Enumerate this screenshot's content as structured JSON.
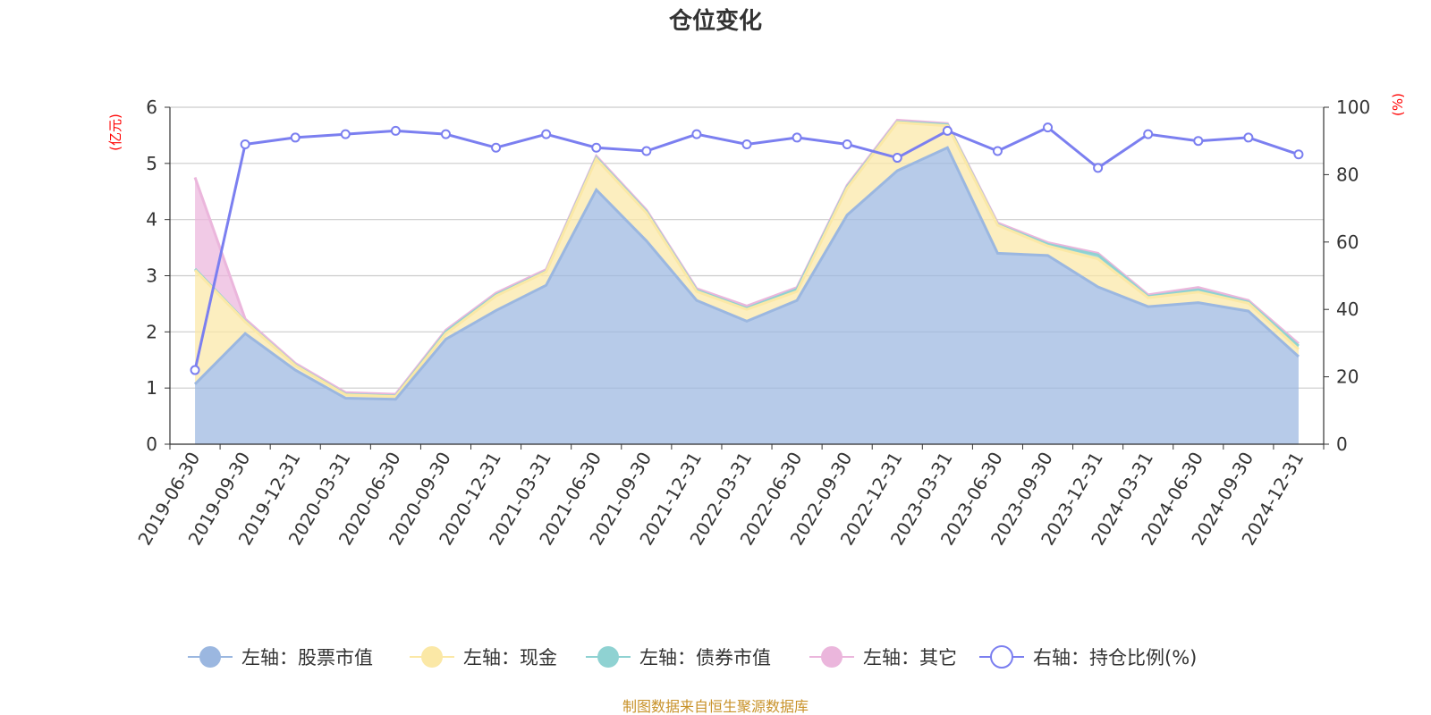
{
  "chart_data": {
    "type": "area",
    "title": "仓位变化",
    "left_axis": {
      "label": "(亿元)",
      "ylim": [
        0,
        6
      ],
      "ticks": [
        "0",
        "1",
        "2",
        "3",
        "4",
        "5",
        "6"
      ]
    },
    "right_axis": {
      "label": "(%)",
      "ylim": [
        0,
        100
      ],
      "ticks": [
        "0",
        "20",
        "40",
        "60",
        "80",
        "100"
      ]
    },
    "categories": [
      "2019-06-30",
      "2019-09-30",
      "2019-12-31",
      "2020-03-31",
      "2020-06-30",
      "2020-09-30",
      "2020-12-31",
      "2021-03-31",
      "2021-06-30",
      "2021-09-30",
      "2021-12-31",
      "2022-03-31",
      "2022-06-30",
      "2022-09-30",
      "2022-12-31",
      "2023-03-31",
      "2023-06-30",
      "2023-09-30",
      "2023-12-31",
      "2024-03-31",
      "2024-06-30",
      "2024-09-30",
      "2024-12-31"
    ],
    "series": [
      {
        "name": "左轴：股票市值",
        "axis": "left",
        "color": "#9bb7e0",
        "values": [
          1.07,
          1.97,
          1.32,
          0.82,
          0.8,
          1.87,
          2.38,
          2.83,
          4.53,
          3.62,
          2.56,
          2.19,
          2.56,
          4.08,
          4.87,
          5.28,
          3.4,
          3.36,
          2.8,
          2.45,
          2.52,
          2.37,
          1.56
        ]
      },
      {
        "name": "左轴：现金",
        "axis": "left",
        "color": "#fbe8a6",
        "values": [
          2.03,
          0.21,
          0.08,
          0.06,
          0.05,
          0.1,
          0.26,
          0.24,
          0.55,
          0.5,
          0.16,
          0.21,
          0.16,
          0.48,
          0.86,
          0.39,
          0.5,
          0.17,
          0.5,
          0.16,
          0.19,
          0.14,
          0.13
        ]
      },
      {
        "name": "左轴：债券市值",
        "axis": "left",
        "color": "#8fd2d2",
        "values": [
          0.02,
          0.01,
          0.01,
          0.01,
          0.01,
          0.03,
          0.02,
          0.01,
          0.02,
          0.02,
          0.02,
          0.02,
          0.04,
          0.02,
          0.01,
          0.02,
          0.01,
          0.03,
          0.07,
          0.02,
          0.04,
          0.02,
          0.06
        ]
      },
      {
        "name": "左轴：其它",
        "axis": "left",
        "color": "#ebb6dc",
        "values": [
          1.63,
          0.04,
          0.03,
          0.03,
          0.03,
          0.03,
          0.03,
          0.03,
          0.03,
          0.03,
          0.03,
          0.04,
          0.03,
          0.03,
          0.03,
          0.02,
          0.03,
          0.03,
          0.03,
          0.03,
          0.04,
          0.03,
          0.04
        ]
      },
      {
        "name": "右轴：持仓比例(%)",
        "axis": "right",
        "color": "#7b7ff0",
        "values": [
          22,
          89,
          91,
          92,
          93,
          92,
          88,
          92,
          88,
          87,
          92,
          89,
          91,
          89,
          85,
          93,
          87,
          94,
          82,
          92,
          90,
          91,
          86
        ]
      }
    ],
    "legend_position": "bottom",
    "grid": true,
    "footer": "制图数据来自恒生聚源数据库"
  }
}
